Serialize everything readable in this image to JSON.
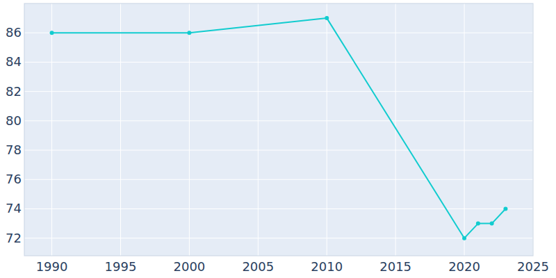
{
  "chart_data": {
    "type": "line",
    "x": [
      1990,
      2000,
      2010,
      2020,
      2021,
      2022,
      2023
    ],
    "values": [
      86,
      86,
      87,
      72,
      73,
      73,
      74
    ],
    "color": "#12cccf",
    "marker": "circle",
    "xlim": [
      1988,
      2025
    ],
    "xticks": [
      1990,
      1995,
      2000,
      2005,
      2010,
      2015,
      2020,
      2025
    ],
    "ylim": [
      70.8,
      88
    ],
    "yticks": [
      72,
      74,
      76,
      78,
      80,
      82,
      84,
      86
    ],
    "grid": true
  }
}
